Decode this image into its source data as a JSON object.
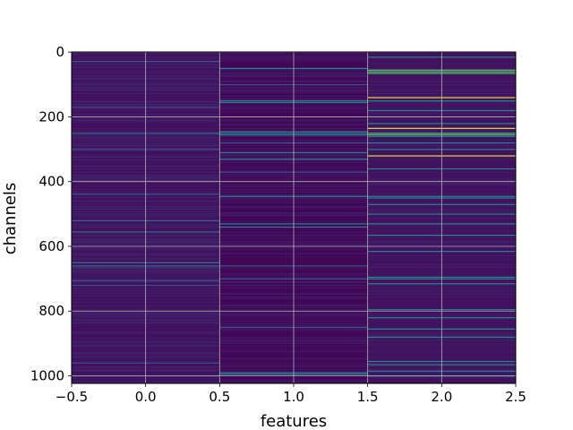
{
  "chart_data": {
    "type": "heatmap",
    "title": "",
    "xlabel": "features",
    "ylabel": "channels",
    "xlim": [
      -0.5,
      2.5
    ],
    "ylim": [
      1023.5,
      -0.5
    ],
    "x_ticks": [
      -0.5,
      0.0,
      0.5,
      1.0,
      1.5,
      2.0,
      2.5
    ],
    "x_tick_labels": [
      "−0.5",
      "0.0",
      "0.5",
      "1.0",
      "1.5",
      "2.0",
      "2.5"
    ],
    "y_ticks": [
      0,
      200,
      400,
      600,
      800,
      1000
    ],
    "y_tick_labels": [
      "0",
      "200",
      "400",
      "600",
      "800",
      "1000"
    ],
    "grid": true,
    "colormap": "viridis",
    "columns": [
      0,
      1,
      2
    ],
    "rows": 1024,
    "row_value_scale": [
      0.0,
      1.0
    ],
    "bright_rows": [
      {
        "column": 0,
        "channels": [
          250,
          520,
          555,
          650,
          660
        ],
        "value": 0.35
      },
      {
        "column": 0,
        "channels": [
          28,
          170,
          300,
          438,
          705,
          720,
          960,
          1000
        ],
        "value": 0.25
      },
      {
        "column": 1,
        "channels": [
          50,
          150,
          155,
          245,
          250,
          255,
          310,
          330,
          445,
          530,
          540,
          990,
          995
        ],
        "value": 0.45
      },
      {
        "column": 1,
        "channels": [
          100,
          280,
          370,
          660,
          700,
          850
        ],
        "value": 0.28
      },
      {
        "column": 2,
        "channels": [
          140,
          235,
          320
        ],
        "value": 0.95
      },
      {
        "column": 2,
        "channels": [
          55,
          60,
          65,
          250,
          255
        ],
        "value": 0.7
      },
      {
        "column": 2,
        "channels": [
          15,
          150,
          180,
          220,
          260,
          280,
          300,
          360,
          445,
          450,
          470,
          500,
          530,
          565,
          615,
          695,
          700,
          715,
          795,
          820,
          855,
          880,
          955,
          965,
          985,
          1000
        ],
        "value": 0.45
      }
    ]
  }
}
